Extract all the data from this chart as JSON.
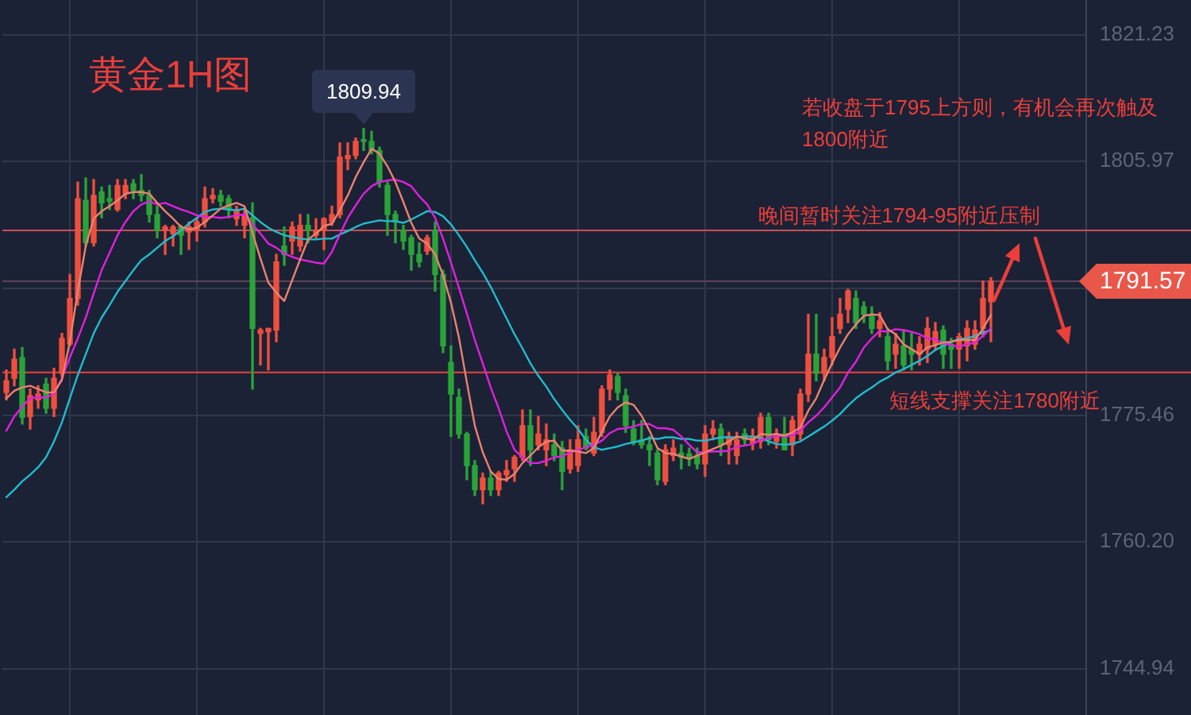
{
  "chart_data": {
    "type": "candlestick",
    "title": "黄金1H图",
    "categories": [
      null,
      null,
      null,
      null,
      null,
      null,
      null,
      null,
      null,
      null,
      null,
      null,
      null,
      null,
      null,
      null,
      null,
      null,
      null,
      null,
      null,
      null,
      null,
      null,
      null,
      null,
      null,
      null,
      null,
      null,
      null,
      null,
      null,
      null,
      null,
      null,
      null,
      null,
      null,
      null,
      null,
      null,
      null,
      null,
      null,
      null,
      null,
      null,
      null,
      null,
      null,
      null,
      null,
      null,
      null,
      null,
      null,
      null,
      null,
      null,
      null,
      null,
      null,
      null,
      null,
      null,
      null,
      null,
      null,
      null,
      null,
      null,
      null,
      null,
      null,
      null,
      null,
      null,
      null,
      null,
      null,
      null,
      null,
      null,
      null,
      null,
      null,
      null,
      null,
      null,
      null,
      null,
      null,
      null,
      null,
      null,
      null,
      null,
      null,
      null,
      null,
      null,
      null,
      null,
      null,
      null,
      null,
      null,
      null,
      null,
      null,
      null,
      null,
      null,
      null,
      null,
      null,
      null,
      null,
      null,
      null,
      null,
      null,
      null,
      null
    ],
    "ohlc": [
      [
        1778.2,
        1780.9,
        1777.3,
        1779.6
      ],
      [
        1779.9,
        1783.4,
        1779.0,
        1782.2
      ],
      [
        1782.4,
        1783.6,
        1774.4,
        1775.2
      ],
      [
        1775.3,
        1778.6,
        1773.8,
        1777.8
      ],
      [
        1777.3,
        1779.0,
        1776.3,
        1778.0
      ],
      [
        1779.2,
        1779.9,
        1775.7,
        1776.3
      ],
      [
        1776.3,
        1781.1,
        1775.3,
        1779.9
      ],
      [
        1780.5,
        1785.3,
        1780.1,
        1784.7
      ],
      [
        1784.0,
        1792.4,
        1783.8,
        1789.5
      ],
      [
        1789.5,
        1803.5,
        1788.7,
        1801.5
      ],
      [
        1801.3,
        1804.0,
        1795.8,
        1796.2
      ],
      [
        1796.2,
        1803.8,
        1795.8,
        1801.9
      ],
      [
        1802.3,
        1802.9,
        1799.2,
        1801.0
      ],
      [
        1801.5,
        1803.1,
        1800.2,
        1801.2
      ],
      [
        1800.2,
        1803.8,
        1800.0,
        1803.1
      ],
      [
        1802.1,
        1803.8,
        1801.5,
        1803.1
      ],
      [
        1803.3,
        1803.8,
        1801.5,
        1802.5
      ],
      [
        1802.5,
        1804.4,
        1801.2,
        1801.9
      ],
      [
        1801.9,
        1802.5,
        1798.7,
        1799.6
      ],
      [
        1799.6,
        1800.6,
        1796.8,
        1797.7
      ],
      [
        1797.7,
        1798.3,
        1794.8,
        1798.1
      ],
      [
        1797.3,
        1798.3,
        1795.8,
        1798.1
      ],
      [
        1798.1,
        1798.3,
        1794.8,
        1797.1
      ],
      [
        1797.5,
        1798.7,
        1795.4,
        1798.1
      ],
      [
        1797.7,
        1799.2,
        1796.4,
        1798.7
      ],
      [
        1798.7,
        1802.9,
        1798.1,
        1801.5
      ],
      [
        1801.5,
        1802.7,
        1801.0,
        1801.9
      ],
      [
        1801.9,
        1802.5,
        1800.6,
        1801.2
      ],
      [
        1801.5,
        1801.9,
        1799.2,
        1800.2
      ],
      [
        1799.1,
        1800.6,
        1798.3,
        1800.0
      ],
      [
        1798.3,
        1800.2,
        1796.8,
        1799.6
      ],
      [
        1799.2,
        1801.0,
        1778.6,
        1785.9
      ],
      [
        1785.3,
        1785.9,
        1781.5,
        1785.7
      ],
      [
        1785.5,
        1785.9,
        1780.9,
        1785.9
      ],
      [
        1785.7,
        1794.8,
        1784.3,
        1793.9
      ],
      [
        1795.8,
        1798.1,
        1793.5,
        1794.8
      ],
      [
        1796.4,
        1798.7,
        1794.8,
        1798.1
      ],
      [
        1795.8,
        1799.6,
        1795.2,
        1798.3
      ],
      [
        1798.3,
        1799.6,
        1796.2,
        1797.7
      ],
      [
        1797.1,
        1799.1,
        1796.8,
        1797.7
      ],
      [
        1797.7,
        1799.2,
        1795.4,
        1799.1
      ],
      [
        1798.7,
        1800.6,
        1798.3,
        1799.6
      ],
      [
        1799.6,
        1808.2,
        1799.2,
        1806.5
      ],
      [
        1806.3,
        1808.2,
        1805.0,
        1806.7
      ],
      [
        1806.7,
        1808.8,
        1806.3,
        1808.4
      ],
      [
        1808.6,
        1809.94,
        1807.3,
        1808.4
      ],
      [
        1808.4,
        1809.6,
        1806.9,
        1807.3
      ],
      [
        1807.3,
        1807.7,
        1802.9,
        1803.5
      ],
      [
        1803.1,
        1803.5,
        1797.1,
        1799.6
      ],
      [
        1799.6,
        1800.0,
        1796.2,
        1798.7
      ],
      [
        1797.7,
        1798.3,
        1795.4,
        1796.4
      ],
      [
        1796.8,
        1797.1,
        1792.9,
        1794.8
      ],
      [
        1794.8,
        1796.2,
        1793.3,
        1793.9
      ],
      [
        1795.2,
        1797.1,
        1794.8,
        1796.8
      ],
      [
        1797.7,
        1798.7,
        1790.4,
        1792.4
      ],
      [
        1792.4,
        1792.9,
        1783.0,
        1783.8
      ],
      [
        1781.8,
        1783.8,
        1772.9,
        1778.0
      ],
      [
        1777.6,
        1778.6,
        1772.7,
        1773.2
      ],
      [
        1773.2,
        1773.4,
        1767.7,
        1769.4
      ],
      [
        1769.4,
        1770.0,
        1765.8,
        1766.5
      ],
      [
        1766.5,
        1768.5,
        1764.8,
        1767.9
      ],
      [
        1767.9,
        1768.7,
        1765.8,
        1766.5
      ],
      [
        1766.5,
        1768.7,
        1765.8,
        1768.5
      ],
      [
        1768.3,
        1770.0,
        1767.5,
        1768.8
      ],
      [
        1769.0,
        1770.6,
        1767.5,
        1770.4
      ],
      [
        1770.4,
        1776.1,
        1770.0,
        1774.2
      ],
      [
        1774.2,
        1776.1,
        1769.4,
        1771.3
      ],
      [
        1771.9,
        1775.3,
        1771.3,
        1773.2
      ],
      [
        1771.3,
        1774.4,
        1769.4,
        1772.5
      ],
      [
        1771.9,
        1773.2,
        1770.0,
        1770.6
      ],
      [
        1771.5,
        1772.3,
        1766.5,
        1768.7
      ],
      [
        1769.0,
        1772.5,
        1768.5,
        1771.3
      ],
      [
        1769.4,
        1774.2,
        1768.7,
        1772.5
      ],
      [
        1772.9,
        1773.8,
        1771.3,
        1771.5
      ],
      [
        1770.9,
        1775.2,
        1770.6,
        1773.4
      ],
      [
        1773.4,
        1779.0,
        1772.9,
        1778.6
      ],
      [
        1778.6,
        1780.9,
        1777.3,
        1780.3
      ],
      [
        1780.1,
        1780.5,
        1777.3,
        1778.2
      ],
      [
        1777.8,
        1778.6,
        1773.4,
        1774.2
      ],
      [
        1773.8,
        1774.8,
        1771.9,
        1772.3
      ],
      [
        1772.5,
        1774.8,
        1771.5,
        1771.9
      ],
      [
        1771.9,
        1772.9,
        1769.4,
        1771.3
      ],
      [
        1770.9,
        1771.3,
        1767.1,
        1767.7
      ],
      [
        1767.5,
        1771.9,
        1767.1,
        1771.3
      ],
      [
        1770.6,
        1772.5,
        1770.0,
        1771.5
      ],
      [
        1770.9,
        1771.9,
        1769.0,
        1770.4
      ],
      [
        1770.8,
        1771.5,
        1769.4,
        1770.2
      ],
      [
        1770.6,
        1771.5,
        1769.0,
        1769.6
      ],
      [
        1769.6,
        1774.2,
        1768.1,
        1773.2
      ],
      [
        1773.2,
        1774.8,
        1772.5,
        1773.8
      ],
      [
        1773.8,
        1774.4,
        1770.6,
        1771.9
      ],
      [
        1771.9,
        1773.4,
        1769.6,
        1772.9
      ],
      [
        1770.6,
        1773.4,
        1769.6,
        1772.5
      ],
      [
        1773.2,
        1773.8,
        1771.9,
        1772.5
      ],
      [
        1772.1,
        1773.8,
        1771.3,
        1772.9
      ],
      [
        1772.3,
        1775.7,
        1771.5,
        1775.2
      ],
      [
        1775.2,
        1775.7,
        1771.9,
        1772.5
      ],
      [
        1772.3,
        1773.8,
        1771.5,
        1773.2
      ],
      [
        1773.2,
        1775.2,
        1771.3,
        1771.3
      ],
      [
        1771.9,
        1775.3,
        1770.6,
        1774.8
      ],
      [
        1773.2,
        1778.6,
        1772.5,
        1778.0
      ],
      [
        1778.0,
        1787.6,
        1777.1,
        1782.8
      ],
      [
        1782.8,
        1787.6,
        1779.6,
        1780.5
      ],
      [
        1780.5,
        1783.4,
        1779.6,
        1782.4
      ],
      [
        1782.4,
        1787.2,
        1781.5,
        1784.9
      ],
      [
        1785.9,
        1789.5,
        1785.3,
        1787.6
      ],
      [
        1788.2,
        1790.6,
        1786.6,
        1790.4
      ],
      [
        1789.5,
        1790.4,
        1785.9,
        1786.6
      ],
      [
        1788.5,
        1789.1,
        1786.6,
        1787.6
      ],
      [
        1787.6,
        1788.5,
        1785.3,
        1785.9
      ],
      [
        1785.9,
        1787.8,
        1784.9,
        1786.8
      ],
      [
        1784.9,
        1785.9,
        1780.9,
        1782.0
      ],
      [
        1782.8,
        1785.3,
        1781.1,
        1784.0
      ],
      [
        1783.8,
        1785.7,
        1780.9,
        1781.5
      ],
      [
        1783.4,
        1785.3,
        1780.9,
        1782.8
      ],
      [
        1782.8,
        1784.9,
        1781.5,
        1784.0
      ],
      [
        1783.4,
        1787.2,
        1781.8,
        1785.9
      ],
      [
        1784.0,
        1786.6,
        1783.4,
        1785.5
      ],
      [
        1785.7,
        1786.2,
        1781.1,
        1782.8
      ],
      [
        1784.0,
        1784.7,
        1781.1,
        1783.4
      ],
      [
        1783.4,
        1785.3,
        1781.1,
        1784.9
      ],
      [
        1783.8,
        1786.8,
        1782.0,
        1785.9
      ],
      [
        1784.0,
        1786.8,
        1783.4,
        1785.7
      ],
      [
        1785.9,
        1791.6,
        1784.9,
        1789.5
      ],
      [
        1789.1,
        1792.0,
        1784.3,
        1791.57
      ]
    ],
    "colors": [
      "#ef4f3f",
      "#ef4f3f",
      "#2ba33a",
      "#ef4f3f",
      "#ef4f3f",
      "#2ba33a",
      "#ef4f3f",
      "#ef4f3f",
      "#ef4f3f",
      "#ef4f3f",
      "#2ba33a",
      "#ef4f3f",
      "#2ba33a",
      "#2ba33a",
      "#ef4f3f",
      "#ef4f3f",
      "#2ba33a",
      "#2ba33a",
      "#2ba33a",
      "#2ba33a",
      "#ef4f3f",
      "#ef4f3f",
      "#2ba33a",
      "#ef4f3f",
      "#ef4f3f",
      "#ef4f3f",
      "#ef4f3f",
      "#2ba33a",
      "#2ba33a",
      "#ef4f3f",
      "#ef4f3f",
      "#2ba33a",
      "#ef4f3f",
      "#ef4f3f",
      "#ef4f3f",
      "#2ba33a",
      "#ef4f3f",
      "#ef4f3f",
      "#2ba33a",
      "#ef4f3f",
      "#ef4f3f",
      "#ef4f3f",
      "#ef4f3f",
      "#ef4f3f",
      "#ef4f3f",
      "#2ba33a",
      "#2ba33a",
      "#2ba33a",
      "#2ba33a",
      "#2ba33a",
      "#2ba33a",
      "#2ba33a",
      "#2ba33a",
      "#ef4f3f",
      "#2ba33a",
      "#2ba33a",
      "#2ba33a",
      "#2ba33a",
      "#2ba33a",
      "#2ba33a",
      "#ef4f3f",
      "#2ba33a",
      "#ef4f3f",
      "#ef4f3f",
      "#ef4f3f",
      "#ef4f3f",
      "#2ba33a",
      "#ef4f3f",
      "#ef4f3f",
      "#2ba33a",
      "#2ba33a",
      "#ef4f3f",
      "#ef4f3f",
      "#2ba33a",
      "#ef4f3f",
      "#ef4f3f",
      "#ef4f3f",
      "#2ba33a",
      "#2ba33a",
      "#2ba33a",
      "#2ba33a",
      "#2ba33a",
      "#2ba33a",
      "#ef4f3f",
      "#ef4f3f",
      "#2ba33a",
      "#2ba33a",
      "#2ba33a",
      "#ef4f3f",
      "#ef4f3f",
      "#2ba33a",
      "#ef4f3f",
      "#ef4f3f",
      "#2ba33a",
      "#ef4f3f",
      "#ef4f3f",
      "#2ba33a",
      "#ef4f3f",
      "#2ba33a",
      "#ef4f3f",
      "#ef4f3f",
      "#ef4f3f",
      "#2ba33a",
      "#ef4f3f",
      "#ef4f3f",
      "#ef4f3f",
      "#ef4f3f",
      "#2ba33a",
      "#2ba33a",
      "#2ba33a",
      "#ef4f3f",
      "#2ba33a",
      "#ef4f3f",
      "#2ba33a",
      "#2ba33a",
      "#ef4f3f",
      "#ef4f3f",
      "#ef4f3f",
      "#2ba33a",
      "#2ba33a",
      "#ef4f3f",
      "#ef4f3f",
      "#ef4f3f",
      "#ef4f3f",
      "#ef4f3f"
    ],
    "series": [
      {
        "type": "line",
        "color": "#ec8270",
        "values": [
          1777.5,
          1778.4,
          1778.8,
          1779.0,
          1778.6,
          1778.2,
          1778.2,
          1779.7,
          1784.3,
          1790.4,
          1795.8,
          1799.1,
          1800.0,
          1800.6,
          1801.3,
          1802.1,
          1802.3,
          1802.3,
          1802.1,
          1801.0,
          1800.0,
          1799.1,
          1798.1,
          1797.8,
          1798.0,
          1798.7,
          1799.5,
          1800.3,
          1800.7,
          1801.0,
          1800.6,
          1797.4,
          1794.3,
          1791.4,
          1790.2,
          1789.2,
          1791.7,
          1794.2,
          1796.6,
          1797.3,
          1798.2,
          1798.5,
          1800.1,
          1801.9,
          1804.1,
          1805.9,
          1807.5,
          1806.9,
          1805.4,
          1803.5,
          1801.1,
          1798.6,
          1796.7,
          1796.1,
          1794.8,
          1792.3,
          1789.0,
          1784.8,
          1779.4,
          1774.2,
          1771.0,
          1768.7,
          1767.8,
          1767.7,
          1768.4,
          1769.7,
          1770.6,
          1771.6,
          1772.3,
          1772.4,
          1771.2,
          1771.2,
          1771.1,
          1770.9,
          1771.5,
          1773.5,
          1775.3,
          1776.4,
          1777.0,
          1776.7,
          1775.4,
          1773.6,
          1771.5,
          1770.9,
          1770.8,
          1770.5,
          1770.2,
          1770.6,
          1771.0,
          1771.4,
          1771.8,
          1772.3,
          1772.9,
          1772.7,
          1772.5,
          1773.2,
          1773.1,
          1773.2,
          1773.0,
          1773.4,
          1774.0,
          1776.0,
          1777.5,
          1779.7,
          1781.7,
          1783.6,
          1785.2,
          1786.4,
          1787.4,
          1787.6,
          1787.5,
          1785.8,
          1785.2,
          1784.0,
          1783.4,
          1782.8,
          1783.6,
          1783.9,
          1784.2,
          1784.3,
          1784.5,
          1784.5,
          1784.5,
          1785.9,
          1787.5
        ]
      },
      {
        "type": "line",
        "color": "#e020de",
        "values": [
          1773.6,
          1775.3,
          1776.5,
          1777.5,
          1777.6,
          1777.6,
          1778.0,
          1779.9,
          1782.4,
          1784.7,
          1787.2,
          1790.1,
          1792.9,
          1795.0,
          1797.1,
          1798.7,
          1800.0,
          1800.8,
          1801.2,
          1800.8,
          1801.0,
          1800.6,
          1800.2,
          1799.9,
          1799.5,
          1799.3,
          1799.3,
          1799.2,
          1799.3,
          1799.5,
          1799.6,
          1798.4,
          1797.3,
          1796.1,
          1795.6,
          1794.9,
          1794.5,
          1794.2,
          1794.0,
          1793.8,
          1793.7,
          1795.1,
          1797.2,
          1799.2,
          1800.7,
          1802.1,
          1803.0,
          1803.5,
          1803.7,
          1803.8,
          1803.5,
          1803.0,
          1801.8,
          1800.8,
          1799.2,
          1796.7,
          1793.8,
          1790.8,
          1787.7,
          1784.5,
          1781.7,
          1778.8,
          1776.3,
          1773.5,
          1771.3,
          1770.4,
          1769.7,
          1769.7,
          1770.0,
          1770.4,
          1770.5,
          1771.0,
          1771.3,
          1771.6,
          1771.9,
          1772.4,
          1773.3,
          1773.8,
          1773.9,
          1774.1,
          1774.4,
          1774.4,
          1773.9,
          1773.9,
          1773.7,
          1772.9,
          1771.9,
          1771.0,
          1771.0,
          1771.1,
          1771.1,
          1771.2,
          1771.7,
          1771.8,
          1772.0,
          1772.5,
          1772.7,
          1773.0,
          1772.9,
          1773.0,
          1773.6,
          1774.6,
          1775.4,
          1776.4,
          1777.6,
          1778.8,
          1780.6,
          1781.9,
          1783.6,
          1784.7,
          1785.6,
          1785.5,
          1785.8,
          1785.7,
          1785.5,
          1785.2,
          1784.7,
          1784.6,
          1784.1,
          1783.9,
          1783.7,
          1784.0,
          1784.2,
          1785.0,
          1785.9
        ]
      },
      {
        "type": "line",
        "color": "#22bccd",
        "values": [
          1765.6,
          1766.5,
          1767.5,
          1768.3,
          1769.2,
          1770.4,
          1772.3,
          1774.6,
          1777.5,
          1780.3,
          1782.8,
          1785.3,
          1787.2,
          1788.7,
          1790.3,
          1791.6,
          1792.9,
          1794.1,
          1794.8,
          1795.6,
          1796.4,
          1797.0,
          1797.7,
          1798.5,
          1799.2,
          1799.9,
          1800.2,
          1800.3,
          1800.2,
          1800.1,
          1800.3,
          1799.5,
          1798.7,
          1798.0,
          1797.5,
          1797.1,
          1796.9,
          1796.7,
          1796.6,
          1796.6,
          1796.7,
          1796.7,
          1797.2,
          1797.6,
          1798.1,
          1798.5,
          1798.7,
          1798.9,
          1798.8,
          1798.8,
          1798.6,
          1799.0,
          1799.5,
          1800.0,
          1799.9,
          1799.4,
          1798.4,
          1797.1,
          1795.7,
          1794.1,
          1792.6,
          1790.9,
          1789.0,
          1787.1,
          1785.2,
          1783.5,
          1781.7,
          1780.2,
          1778.9,
          1777.4,
          1776.1,
          1774.9,
          1773.8,
          1772.5,
          1771.6,
          1771.3,
          1771.5,
          1771.7,
          1772.0,
          1772.2,
          1772.4,
          1772.7,
          1772.6,
          1772.8,
          1772.8,
          1772.6,
          1772.6,
          1772.4,
          1772.4,
          1772.6,
          1772.8,
          1772.8,
          1772.8,
          1772.9,
          1772.9,
          1772.7,
          1772.3,
          1772.0,
          1771.9,
          1772.0,
          1772.3,
          1772.9,
          1773.5,
          1774.1,
          1774.8,
          1775.6,
          1776.6,
          1777.5,
          1778.2,
          1778.8,
          1779.5,
          1780.0,
          1780.6,
          1781.0,
          1781.5,
          1782.0,
          1782.6,
          1783.3,
          1783.8,
          1784.3,
          1784.6,
          1784.7,
          1785.0,
          1785.4,
          1785.7
        ]
      }
    ],
    "ylim": [
      1739.4,
      1825.4
    ],
    "yticks": [
      1744.94,
      {
        "value": 1760.2,
        "label": "1760.20"
      },
      1775.46,
      {
        "value": 1790.72,
        "label": null
      },
      1805.97,
      1821.23
    ],
    "tick_labels": "y",
    "grid": true,
    "marker": "none",
    "ref_lines": [
      {
        "axis": "y",
        "value": 1797.7,
        "label": "晚间暂时关注1794-95附近压制",
        "color": "#c8505a"
      },
      {
        "axis": "y",
        "value": 1780.6,
        "label": "短线支撑关注1780附近",
        "color": "#e8413c"
      },
      {
        "axis": "y",
        "value": 1791.57,
        "label": "1791.57",
        "color": "#5e4456"
      }
    ],
    "annotations": [
      {
        "text": "1809.94",
        "y": 1809.94
      },
      "若收盘于1795上方则，有机会再次触及1800附近"
    ]
  }
}
